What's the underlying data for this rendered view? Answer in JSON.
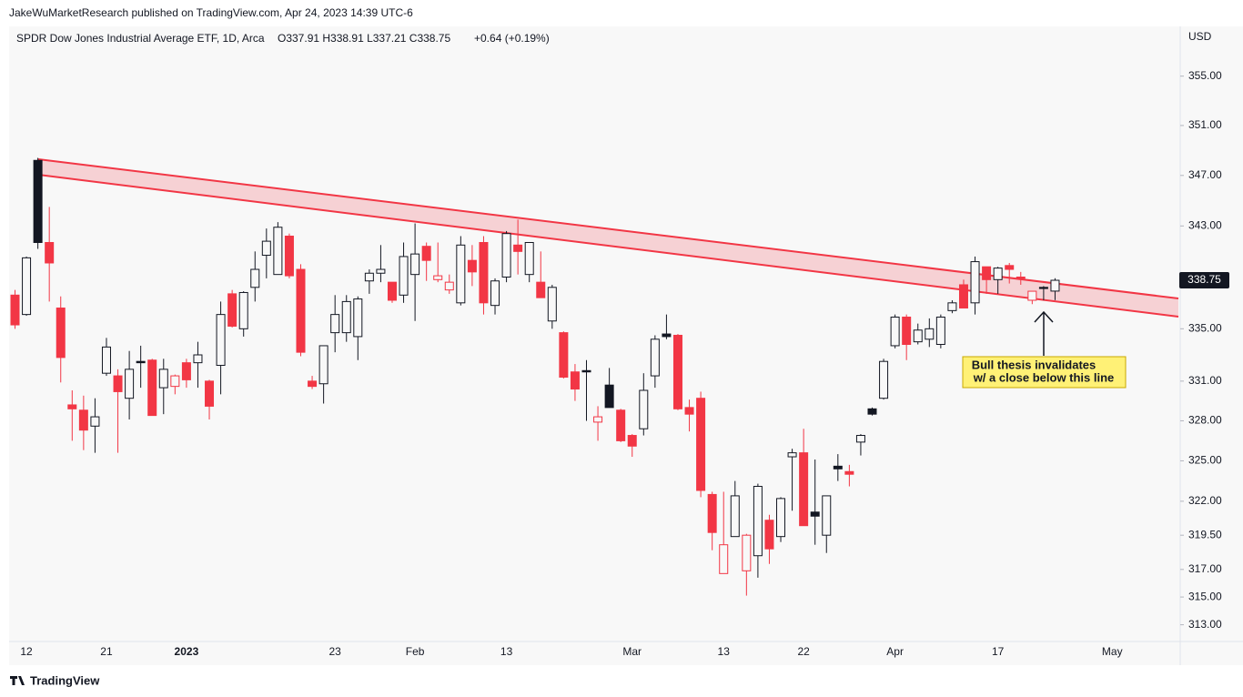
{
  "header": "JakeWuMarketResearch published on TradingView.com, Apr 24, 2023 14:39 UTC-6",
  "footer": "TradingView",
  "chart_data": {
    "type": "candlestick",
    "title": "SPDR Dow Jones Industrial Average ETF, 1D, Arca",
    "ohlc_text": "O337.91 H338.91 L337.21 C338.75",
    "change_text": "+0.64 (+0.19%)",
    "y_axis_label": "USD",
    "annotation": [
      "Bull thesis invalidates",
      "w/ a close below this line"
    ],
    "categories": [
      null,
      "12",
      null,
      null,
      null,
      null,
      null,
      null,
      "21",
      null,
      null,
      null,
      null,
      null,
      null,
      "2023",
      null,
      null,
      null,
      null,
      null,
      null,
      null,
      null,
      null,
      null,
      null,
      null,
      "23",
      null,
      null,
      null,
      null,
      null,
      null,
      "Feb",
      null,
      null,
      null,
      null,
      null,
      null,
      null,
      "13",
      null,
      null,
      null,
      null,
      null,
      null,
      null,
      null,
      null,
      null,
      "Mar",
      null,
      null,
      null,
      null,
      null,
      null,
      null,
      "13",
      null,
      null,
      null,
      null,
      null,
      null,
      "22",
      null,
      null,
      null,
      null,
      null,
      null,
      null,
      "Apr",
      null,
      null,
      null,
      null,
      null,
      null,
      null,
      null,
      "17",
      null,
      null,
      null,
      null,
      null,
      null,
      null,
      null,
      null,
      "May"
    ],
    "open": [
      337.6,
      336.1,
      348.2,
      341.7,
      336.6,
      329.2,
      328.8,
      327.6,
      331.6,
      331.4,
      329.7,
      332.5,
      332.6,
      330.5,
      330.6,
      332.4,
      332.4,
      331.0,
      332.2,
      337.7,
      335.0,
      338.2,
      340.7,
      339.2,
      342.2,
      339.6,
      331.0,
      330.8,
      334.7,
      334.7,
      334.4,
      338.7,
      339.3,
      338.6,
      337.6,
      339.2,
      341.4,
      338.8,
      338.0,
      337.0,
      340.3,
      341.7,
      336.8,
      339.0,
      341.5,
      339.2,
      338.6,
      335.6,
      334.7,
      331.7,
      331.8,
      327.9,
      330.7,
      328.8,
      326.9,
      327.4,
      331.4,
      334.6,
      334.5,
      329.0,
      329.7,
      322.5,
      316.7,
      319.4,
      316.9,
      318.0,
      320.6,
      319.4,
      325.3,
      325.6,
      321.2,
      319.5,
      324.6,
      324.2,
      326.4,
      328.9,
      329.7,
      333.7,
      335.9,
      334.0,
      334.2,
      333.8,
      336.4,
      338.4,
      337.0,
      339.8,
      338.8,
      339.9,
      339.0,
      337.2,
      338.2,
      337.91,
      null,
      null,
      null,
      null,
      null
    ],
    "high": [
      338.0,
      340.6,
      348.4,
      344.5,
      337.5,
      330.3,
      329.9,
      329.7,
      334.3,
      331.9,
      333.3,
      333.7,
      332.7,
      332.7,
      331.5,
      332.7,
      334.0,
      331.1,
      337.1,
      338.0,
      337.9,
      341.0,
      342.8,
      343.3,
      342.4,
      340.0,
      331.4,
      333.7,
      337.6,
      337.6,
      337.5,
      339.6,
      341.5,
      338.6,
      341.7,
      343.2,
      341.7,
      341.7,
      339.2,
      342.2,
      341.5,
      342.2,
      338.9,
      342.6,
      343.5,
      341.7,
      341.0,
      338.4,
      334.8,
      332.3,
      332.6,
      329.1,
      332.0,
      328.9,
      327.0,
      331.6,
      334.5,
      336.1,
      334.6,
      329.6,
      330.2,
      322.7,
      322.7,
      323.5,
      319.6,
      323.3,
      321.0,
      322.3,
      325.9,
      327.4,
      325.1,
      322.4,
      325.5,
      324.7,
      327.0,
      329.0,
      332.7,
      336.1,
      336.1,
      335.4,
      335.8,
      336.1,
      337.2,
      338.8,
      340.6,
      339.8,
      339.8,
      340.1,
      339.4,
      337.9,
      338.3,
      338.91,
      null,
      null,
      null,
      null,
      null
    ],
    "low": [
      335.0,
      336.0,
      341.2,
      337.1,
      330.9,
      326.5,
      325.8,
      325.6,
      331.4,
      325.6,
      328.1,
      330.5,
      328.4,
      328.5,
      330.0,
      330.5,
      330.5,
      328.1,
      330.0,
      335.1,
      334.4,
      337.1,
      338.9,
      339.2,
      338.9,
      332.9,
      330.4,
      329.3,
      333.2,
      334.0,
      332.6,
      337.7,
      338.6,
      337.0,
      337.0,
      335.6,
      338.7,
      338.6,
      337.7,
      336.8,
      338.3,
      336.1,
      336.1,
      338.6,
      339.2,
      338.6,
      337.4,
      335.0,
      331.2,
      329.5,
      328.0,
      326.5,
      329.0,
      326.4,
      325.3,
      326.9,
      330.5,
      334.2,
      328.8,
      327.2,
      322.3,
      318.4,
      316.7,
      319.4,
      315.1,
      316.4,
      317.4,
      319.0,
      321.3,
      320.2,
      318.8,
      318.2,
      323.5,
      323.1,
      325.4,
      328.4,
      329.6,
      333.5,
      332.6,
      333.8,
      333.6,
      333.5,
      336.2,
      336.6,
      336.1,
      337.7,
      337.7,
      338.5,
      338.4,
      336.9,
      337.2,
      337.21,
      null,
      null,
      null,
      null,
      null
    ],
    "close": [
      335.3,
      340.5,
      341.7,
      340.1,
      332.8,
      328.9,
      327.3,
      328.3,
      333.6,
      330.2,
      331.9,
      332.4,
      328.4,
      331.9,
      331.4,
      331.1,
      333.0,
      329.1,
      336.1,
      335.2,
      337.8,
      339.6,
      341.8,
      342.9,
      339.1,
      333.2,
      330.6,
      333.7,
      336.1,
      337.1,
      337.3,
      339.3,
      339.6,
      337.2,
      340.6,
      340.8,
      340.3,
      339.1,
      338.6,
      341.5,
      339.4,
      337.0,
      338.7,
      342.4,
      341.0,
      341.7,
      337.4,
      338.2,
      331.3,
      330.4,
      331.7,
      328.3,
      329.0,
      326.5,
      326.1,
      330.3,
      334.2,
      334.4,
      328.9,
      328.5,
      322.8,
      319.7,
      318.8,
      322.4,
      319.5,
      323.1,
      318.5,
      322.2,
      325.6,
      320.2,
      320.9,
      322.4,
      324.4,
      324.0,
      326.9,
      328.5,
      332.5,
      335.9,
      333.8,
      334.9,
      335.0,
      335.9,
      337.0,
      336.6,
      340.2,
      338.8,
      339.7,
      339.6,
      338.9,
      337.9,
      338.11,
      338.75,
      null,
      null,
      null,
      null,
      null
    ],
    "colors": {
      "up": "#131722",
      "down": "#f23645",
      "hollow": "#f8f8f8"
    },
    "log_scale": true,
    "ylim": [
      311.8,
      359.0
    ],
    "yticks": [
      {
        "value": 355,
        "label": "355.00"
      },
      {
        "value": 351,
        "label": "351.00"
      },
      {
        "value": 347,
        "label": "347.00"
      },
      {
        "value": 343,
        "label": "343.00"
      },
      {
        "value": 335,
        "label": "335.00"
      },
      {
        "value": 331,
        "label": "331.00"
      },
      {
        "value": 328,
        "label": "328.00"
      },
      {
        "value": 325,
        "label": "325.00"
      },
      {
        "value": 322,
        "label": "322.00"
      },
      {
        "value": 319.5,
        "label": "319.50"
      },
      {
        "value": 317,
        "label": "317.00"
      },
      {
        "value": 315,
        "label": "315.00"
      },
      {
        "value": 313,
        "label": "313.00"
      }
    ],
    "grid": false
  }
}
